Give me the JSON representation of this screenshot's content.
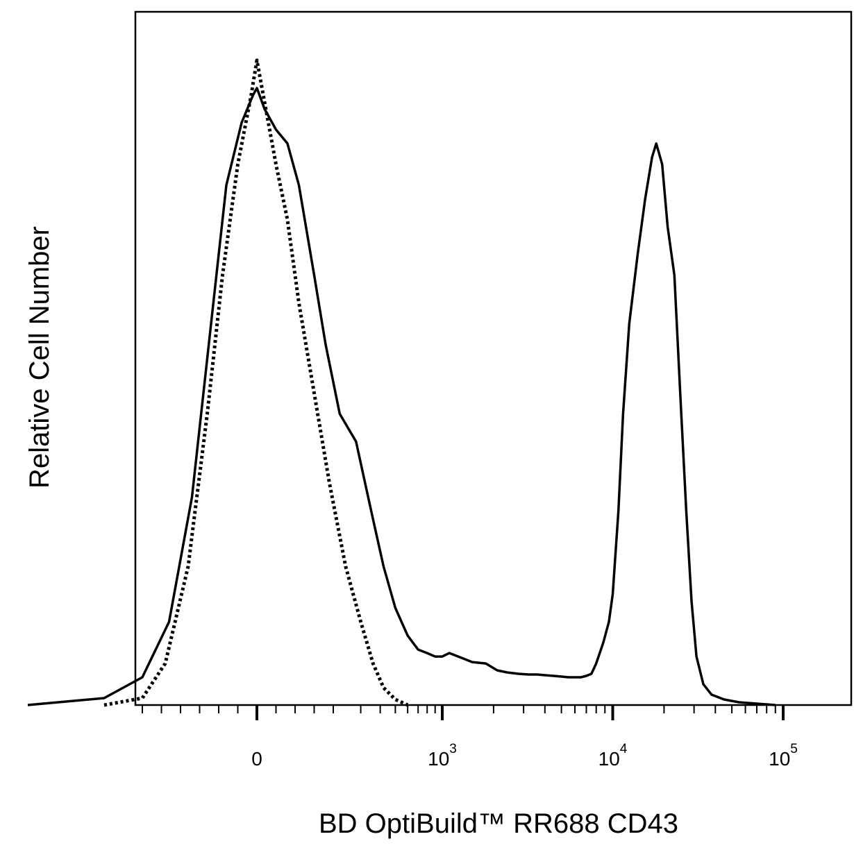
{
  "chart_data": {
    "type": "line",
    "title": "",
    "xlabel": "BD OptiBuild™ RR688 CD43",
    "ylabel": "Relative Cell Number",
    "x_scale": "biexponential",
    "xlim": [
      -600,
      150000
    ],
    "ylim": [
      0,
      1
    ],
    "grid": false,
    "legend": "none",
    "x_tick_labels": [
      {
        "value": 0,
        "base": "0",
        "exp": ""
      },
      {
        "value": 1000,
        "base": "10",
        "exp": "3"
      },
      {
        "value": 10000,
        "base": "10",
        "exp": "4"
      },
      {
        "value": 100000,
        "base": "10",
        "exp": "5"
      }
    ],
    "series": [
      {
        "style": "solid",
        "color": "#000000",
        "points": [
          [
            -600,
            0.0
          ],
          [
            -400,
            0.01
          ],
          [
            -300,
            0.04
          ],
          [
            -230,
            0.12
          ],
          [
            -170,
            0.3
          ],
          [
            -120,
            0.55
          ],
          [
            -80,
            0.75
          ],
          [
            -40,
            0.84
          ],
          [
            -10,
            0.88
          ],
          [
            0,
            0.89
          ],
          [
            20,
            0.86
          ],
          [
            50,
            0.83
          ],
          [
            80,
            0.81
          ],
          [
            110,
            0.75
          ],
          [
            150,
            0.62
          ],
          [
            180,
            0.52
          ],
          [
            220,
            0.42
          ],
          [
            280,
            0.38
          ],
          [
            350,
            0.28
          ],
          [
            420,
            0.2
          ],
          [
            500,
            0.14
          ],
          [
            600,
            0.1
          ],
          [
            700,
            0.08
          ],
          [
            800,
            0.075
          ],
          [
            900,
            0.07
          ],
          [
            1000,
            0.07
          ],
          [
            1100,
            0.075
          ],
          [
            1300,
            0.068
          ],
          [
            1500,
            0.062
          ],
          [
            1800,
            0.06
          ],
          [
            2100,
            0.05
          ],
          [
            2400,
            0.047
          ],
          [
            2800,
            0.045
          ],
          [
            3200,
            0.044
          ],
          [
            3600,
            0.044
          ],
          [
            4000,
            0.043
          ],
          [
            4500,
            0.042
          ],
          [
            5000,
            0.041
          ],
          [
            5500,
            0.04
          ],
          [
            6000,
            0.04
          ],
          [
            6500,
            0.04
          ],
          [
            7000,
            0.042
          ],
          [
            7500,
            0.045
          ],
          [
            8000,
            0.06
          ],
          [
            8800,
            0.09
          ],
          [
            9500,
            0.12
          ],
          [
            10000,
            0.16
          ],
          [
            10800,
            0.28
          ],
          [
            11500,
            0.42
          ],
          [
            12500,
            0.55
          ],
          [
            14000,
            0.65
          ],
          [
            15500,
            0.73
          ],
          [
            17000,
            0.79
          ],
          [
            18000,
            0.81
          ],
          [
            19500,
            0.78
          ],
          [
            21000,
            0.69
          ],
          [
            23000,
            0.62
          ],
          [
            25000,
            0.44
          ],
          [
            27000,
            0.28
          ],
          [
            29000,
            0.15
          ],
          [
            31000,
            0.07
          ],
          [
            34000,
            0.03
          ],
          [
            38000,
            0.015
          ],
          [
            45000,
            0.008
          ],
          [
            55000,
            0.004
          ],
          [
            70000,
            0.002
          ],
          [
            90000,
            0.0
          ]
        ]
      },
      {
        "style": "dotted",
        "color": "#000000",
        "points": [
          [
            -400,
            0.0
          ],
          [
            -300,
            0.01
          ],
          [
            -240,
            0.06
          ],
          [
            -180,
            0.2
          ],
          [
            -130,
            0.42
          ],
          [
            -90,
            0.62
          ],
          [
            -50,
            0.78
          ],
          [
            -15,
            0.88
          ],
          [
            0,
            0.93
          ],
          [
            20,
            0.87
          ],
          [
            50,
            0.78
          ],
          [
            80,
            0.7
          ],
          [
            110,
            0.58
          ],
          [
            150,
            0.45
          ],
          [
            190,
            0.32
          ],
          [
            240,
            0.2
          ],
          [
            300,
            0.12
          ],
          [
            360,
            0.06
          ],
          [
            420,
            0.025
          ],
          [
            500,
            0.008
          ],
          [
            600,
            0.0
          ]
        ]
      }
    ]
  }
}
